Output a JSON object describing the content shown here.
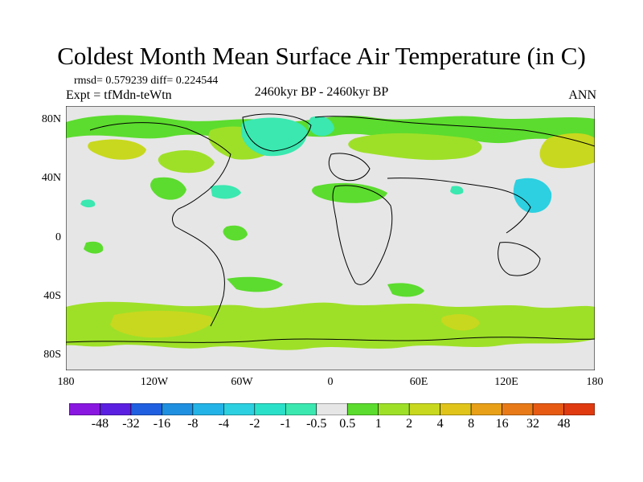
{
  "title": "Coldest Month Mean Surface Air Temperature (in C)",
  "stats_line": "rmsd= 0.579239  diff= 0.224544",
  "experiment": "Expt = tfMdn-teWtn",
  "period": "2460kyr BP - 2460kyr BP",
  "season": "ANN",
  "lat_ticks": [
    "80N",
    "40N",
    "0",
    "40S",
    "80S"
  ],
  "lon_ticks": [
    "180",
    "120W",
    "60W",
    "0",
    "60E",
    "120E",
    "180"
  ],
  "colorbar": {
    "labels": [
      "-48",
      "-32",
      "-16",
      "-8",
      "-4",
      "-2",
      "-1",
      "-0.5",
      "0.5",
      "1",
      "2",
      "4",
      "8",
      "16",
      "32",
      "48"
    ],
    "colors": [
      "#8a17e0",
      "#5a1fe0",
      "#1f5fe0",
      "#1f8fe0",
      "#23b3e6",
      "#2cd0e0",
      "#2ae0c8",
      "#3ae8b0",
      "#e6e6e6",
      "#5cdc2e",
      "#9ee028",
      "#c8d81e",
      "#e0c41a",
      "#e8a018",
      "#e87a18",
      "#e65a14",
      "#e03a10"
    ]
  },
  "map_colors": {
    "background": "#e6e6e6",
    "neg_small": "#3ae8b0",
    "neg_med": "#2cd0e0",
    "pos_small": "#5cdc2e",
    "pos_med": "#9ee028",
    "pos_high": "#c8d81e",
    "pos_higher": "#e0c41a",
    "coast": "#000000"
  }
}
